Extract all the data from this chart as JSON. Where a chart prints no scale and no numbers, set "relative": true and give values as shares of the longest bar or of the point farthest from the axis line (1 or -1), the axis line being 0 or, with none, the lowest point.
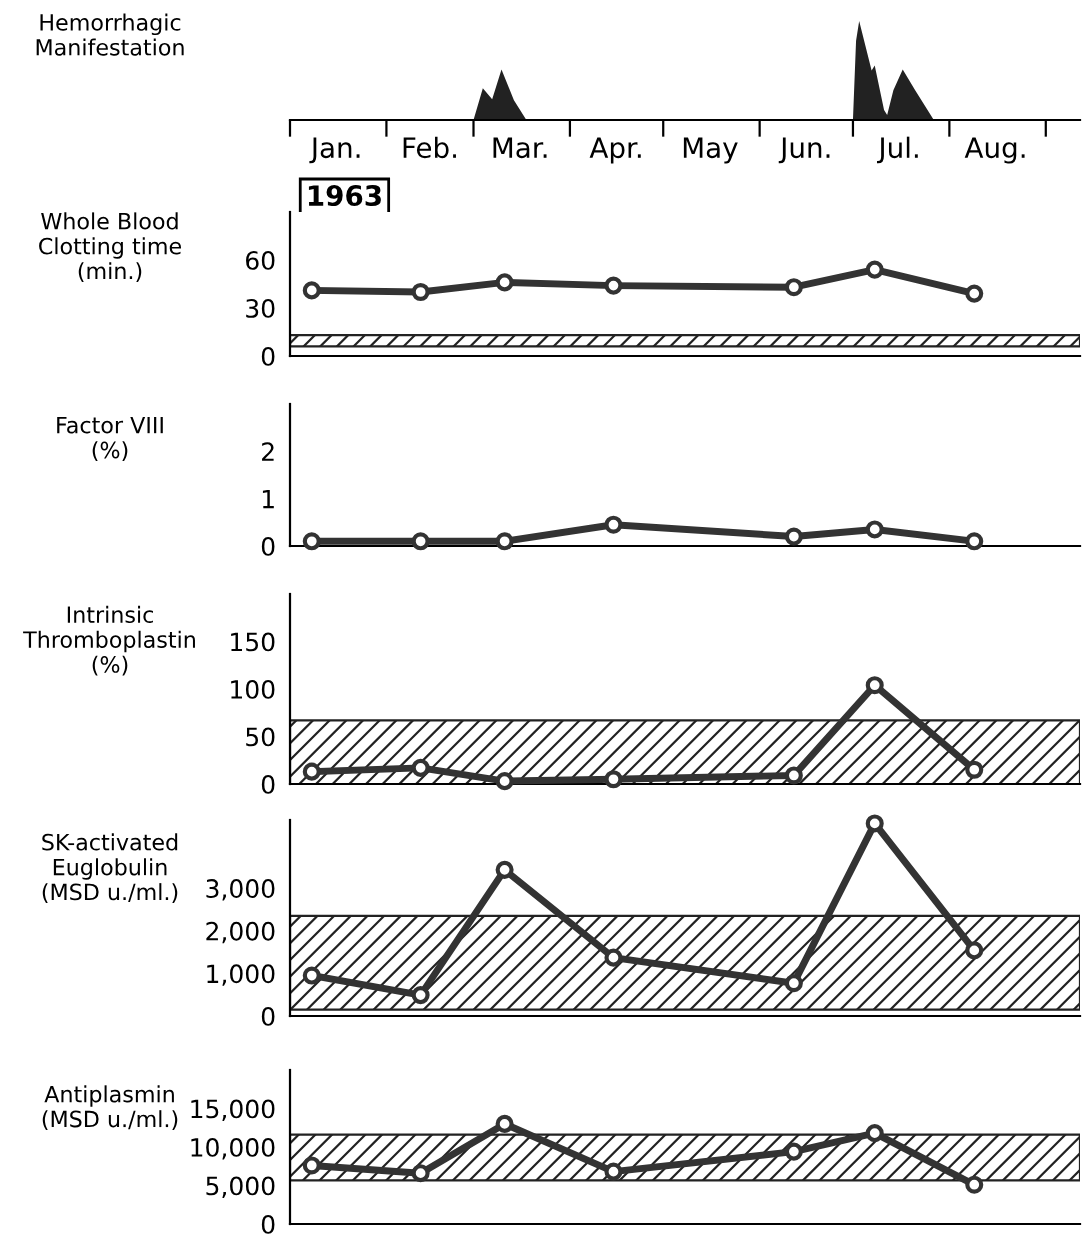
{
  "chart_data": [
    {
      "type": "area",
      "ylabel": "Hemorrhagic\nManifestation",
      "relative": true,
      "tick_labels": "x",
      "annotations": [
        "1963"
      ],
      "series": [
        {
          "color": "#222222",
          "x": [
            "1963-03-01",
            "1963-03-04",
            "1963-03-07",
            "1963-03-10",
            "1963-03-14",
            "1963-03-18",
            "1963-07-01",
            "1963-07-02",
            "1963-07-03",
            "1963-07-05",
            "1963-07-07",
            "1963-07-08",
            "1963-07-11",
            "1963-07-12",
            "1963-07-14",
            "1963-07-17",
            "1963-07-21",
            "1963-07-27"
          ],
          "values": [
            0,
            0.32,
            0.21,
            0.51,
            0.2,
            0,
            0,
            0.8,
            1,
            0.75,
            0.5,
            0.55,
            0.1,
            0.05,
            0.3,
            0.51,
            0.3,
            0
          ]
        }
      ],
      "xlim": [
        "1963-01-01",
        "1963-09-12"
      ],
      "xticks": [
        {
          "value": "1963-01-01",
          "label": null
        },
        {
          "value": "1963-01-16",
          "label": "Jan."
        },
        {
          "value": "1963-02-01",
          "label": null
        },
        {
          "value": "1963-02-15",
          "label": "Feb."
        },
        {
          "value": "1963-03-01",
          "label": null
        },
        {
          "value": "1963-03-16",
          "label": "Mar."
        },
        {
          "value": "1963-04-01",
          "label": null
        },
        {
          "value": "1963-04-16",
          "label": "Apr."
        },
        {
          "value": "1963-05-01",
          "label": null
        },
        {
          "value": "1963-05-16",
          "label": "May"
        },
        {
          "value": "1963-06-01",
          "label": null
        },
        {
          "value": "1963-06-16",
          "label": "Jun."
        },
        {
          "value": "1963-07-01",
          "label": null
        },
        {
          "value": "1963-07-16",
          "label": "Jul."
        },
        {
          "value": "1963-08-01",
          "label": null
        },
        {
          "value": "1963-08-16",
          "label": "Aug."
        },
        {
          "value": "1963-09-01",
          "label": null
        }
      ]
    },
    {
      "type": "line",
      "ylabel": "Whole Blood\nClotting time\n(min.)",
      "tick_labels": "y",
      "marker": "circle",
      "xlim": [
        "1963-01-01",
        "1963-09-12"
      ],
      "ylim": [
        0,
        90
      ],
      "yticks": [
        0,
        30,
        60
      ],
      "x": [
        "1963-01-08",
        "1963-02-12",
        "1963-03-11",
        "1963-04-15",
        "1963-06-12",
        "1963-07-08",
        "1963-08-09"
      ],
      "series": [
        {
          "color": "#333333",
          "values": [
            41,
            40,
            46,
            44,
            43,
            54,
            39
          ]
        }
      ],
      "bands": [
        {
          "axis": "y",
          "from": 6,
          "to": 13
        }
      ]
    },
    {
      "type": "line",
      "ylabel": "Factor VIII\n(%)",
      "tick_labels": "y",
      "marker": "circle",
      "xlim": [
        "1963-01-01",
        "1963-09-12"
      ],
      "ylim": [
        0,
        3
      ],
      "yticks": [
        0,
        1,
        2
      ],
      "x": [
        "1963-01-08",
        "1963-02-12",
        "1963-03-11",
        "1963-04-15",
        "1963-06-12",
        "1963-07-08",
        "1963-08-09"
      ],
      "series": [
        {
          "color": "#333333",
          "values": [
            0.1,
            0.1,
            0.1,
            0.45,
            0.2,
            0.35,
            0.1
          ]
        }
      ]
    },
    {
      "type": "line",
      "ylabel": "Intrinsic\nThromboplastin\n(%)",
      "tick_labels": "y",
      "marker": "circle",
      "xlim": [
        "1963-01-01",
        "1963-09-12"
      ],
      "ylim": [
        0,
        200
      ],
      "yticks": [
        0,
        50,
        100,
        150
      ],
      "x": [
        "1963-01-08",
        "1963-02-12",
        "1963-03-11",
        "1963-04-15",
        "1963-06-12",
        "1963-07-08",
        "1963-08-09"
      ],
      "series": [
        {
          "color": "#333333",
          "values": [
            13,
            17,
            3,
            5,
            9,
            104,
            15
          ]
        }
      ],
      "bands": [
        {
          "axis": "y",
          "from": 0,
          "to": 67
        }
      ]
    },
    {
      "type": "line",
      "ylabel": "SK-activated\nEuglobulin\n(MSD u./ml.)",
      "tick_labels": "y",
      "marker": "circle",
      "xlim": [
        "1963-01-01",
        "1963-09-12"
      ],
      "ylim": [
        0,
        4600
      ],
      "yticks": [
        0,
        {
          "value": 1000,
          "label": "1,000"
        },
        {
          "value": 2000,
          "label": "2,000"
        },
        {
          "value": 3000,
          "label": "3,000"
        }
      ],
      "x": [
        "1963-01-08",
        "1963-02-12",
        "1963-03-11",
        "1963-04-15",
        "1963-06-12",
        "1963-07-08",
        "1963-08-09"
      ],
      "series": [
        {
          "color": "#333333",
          "values": [
            950,
            490,
            3430,
            1370,
            770,
            4520,
            1540
          ]
        }
      ],
      "bands": [
        {
          "axis": "y",
          "from": 150,
          "to": 2350
        }
      ]
    },
    {
      "type": "line",
      "ylabel": "Antiplasmin\n(MSD u./ml.)",
      "tick_labels": "y",
      "marker": "circle",
      "xlim": [
        "1963-01-01",
        "1963-09-12"
      ],
      "ylim": [
        0,
        20000
      ],
      "yticks": [
        0,
        {
          "value": 5000,
          "label": "5,000"
        },
        {
          "value": 10000,
          "label": "10,000"
        },
        {
          "value": 15000,
          "label": "15,000"
        }
      ],
      "x": [
        "1963-01-08",
        "1963-02-12",
        "1963-03-11",
        "1963-04-15",
        "1963-06-12",
        "1963-07-08",
        "1963-08-09"
      ],
      "series": [
        {
          "color": "#333333",
          "values": [
            7600,
            6600,
            13000,
            6800,
            9400,
            11800,
            5100
          ]
        }
      ],
      "bands": [
        {
          "axis": "y",
          "from": 5660,
          "to": 11600
        }
      ]
    }
  ]
}
